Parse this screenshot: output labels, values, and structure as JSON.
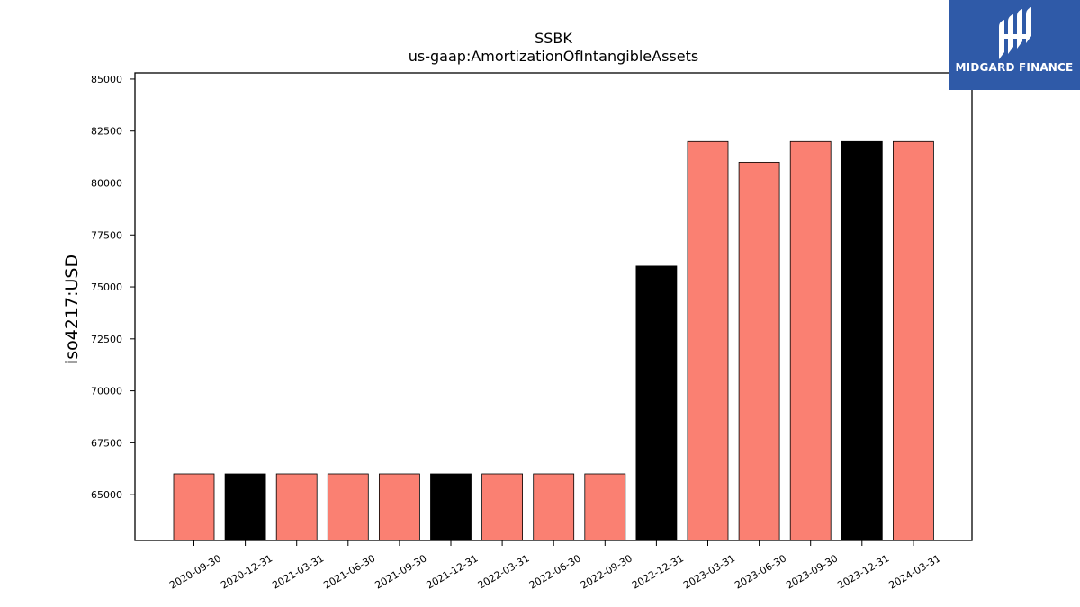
{
  "chart_data": {
    "type": "bar",
    "title": "SSBK",
    "subtitle": "us-gaap:AmortizationOfIntangibleAssets",
    "xlabel": "",
    "ylabel": "iso4217:USD",
    "categories": [
      "2020-09-30",
      "2020-12-31",
      "2021-03-31",
      "2021-06-30",
      "2021-09-30",
      "2021-12-31",
      "2022-03-31",
      "2022-06-30",
      "2022-09-30",
      "2022-12-31",
      "2023-03-31",
      "2023-06-30",
      "2023-09-30",
      "2023-12-31",
      "2024-03-31"
    ],
    "values": [
      66000,
      66000,
      66000,
      66000,
      66000,
      66000,
      66000,
      66000,
      66000,
      76000,
      82000,
      81000,
      82000,
      82000,
      82000
    ],
    "bar_colors": [
      "#fa8072",
      "#000000",
      "#fa8072",
      "#fa8072",
      "#fa8072",
      "#000000",
      "#fa8072",
      "#fa8072",
      "#fa8072",
      "#000000",
      "#fa8072",
      "#fa8072",
      "#fa8072",
      "#000000",
      "#fa8072"
    ],
    "yticks": [
      65000,
      67500,
      70000,
      72500,
      75000,
      77500,
      80000,
      82500,
      85000
    ],
    "ylim": [
      62800,
      85300
    ],
    "grid": false,
    "legend": "none"
  },
  "logo": {
    "text": "MIDGARD FINANCE",
    "background": "#2f5aa8",
    "icon": "midgard-logo-icon"
  }
}
